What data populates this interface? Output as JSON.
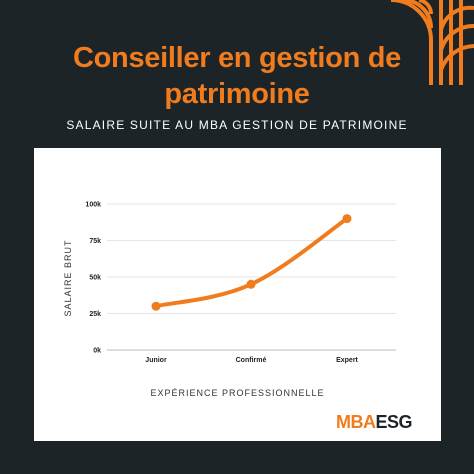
{
  "header": {
    "title_line1": "Conseiller en gestion de",
    "title_line2": "patrimoine",
    "subtitle": "SALAIRE SUITE AU MBA GESTION DE PATRIMOINE"
  },
  "colors": {
    "accent": "#f07c1e",
    "background": "#1c2428",
    "card": "#ffffff"
  },
  "chart_data": {
    "type": "line",
    "categories": [
      "Junior",
      "Confirmé",
      "Expert"
    ],
    "series": [
      {
        "values": [
          30000,
          45000,
          90000
        ]
      }
    ],
    "ylabel": "SALAIRE BRUT",
    "xlabel": "EXPÉRIENCE PROFESSIONNELLE",
    "ylim": [
      0,
      100000
    ],
    "yticks": [
      0,
      25000,
      50000,
      75000,
      100000
    ],
    "ytick_labels": [
      "0k",
      "25k",
      "50k",
      "75k",
      "100k"
    ],
    "grid": true,
    "line_color": "#f07c1e"
  },
  "logo": {
    "part1": "MBA",
    "part2": "ESG"
  },
  "decoration": {
    "icon": "orange-arc-pattern-icon"
  }
}
